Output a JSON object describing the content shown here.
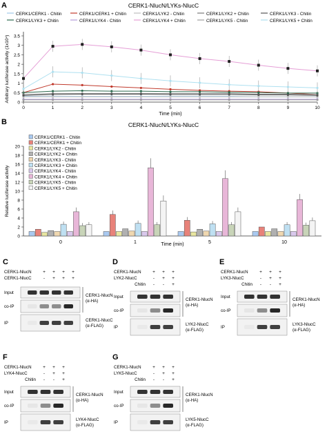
{
  "figure": {
    "panels": [
      "A",
      "B",
      "C",
      "D",
      "E",
      "F",
      "G"
    ]
  },
  "chart_data": [
    {
      "panel": "A",
      "type": "line",
      "title": "CERK1-NlucN/LYKs-NlucC",
      "xlabel": "Time (min)",
      "ylabel": "Arbitrary luciferase activity (1x10⁴)",
      "x": [
        0,
        1,
        2,
        3,
        4,
        5,
        6,
        7,
        8,
        9,
        10
      ],
      "xlim": [
        0,
        10
      ],
      "ylim": [
        0,
        3.5
      ],
      "yticks": [
        0,
        0.5,
        1,
        1.5,
        2,
        2.5,
        3,
        3.5
      ],
      "series": [
        {
          "name": "CERK1/CERK1 - Chitin",
          "color": "#9ec9e8",
          "values": [
            0.3,
            0.3,
            0.3,
            0.3,
            0.3,
            0.3,
            0.3,
            0.3,
            0.28,
            0.28,
            0.28
          ]
        },
        {
          "name": "CERK1/CERK1 + Chitin",
          "color": "#c0392b",
          "values": [
            0.5,
            0.95,
            0.9,
            0.82,
            0.75,
            0.68,
            0.62,
            0.58,
            0.55,
            0.48,
            0.4
          ]
        },
        {
          "name": "CERK1/LYK2 - Chitin",
          "color": "#bdbdbd",
          "values": [
            0.28,
            0.28,
            0.28,
            0.28,
            0.28,
            0.28,
            0.28,
            0.28,
            0.28,
            0.28,
            0.28
          ]
        },
        {
          "name": "CERK1/LYK2 + Chitin",
          "color": "#7a7a7a",
          "values": [
            0.4,
            0.45,
            0.45,
            0.45,
            0.45,
            0.45,
            0.45,
            0.45,
            0.42,
            0.42,
            0.4
          ]
        },
        {
          "name": "CERK1/LYK3 - Chitin",
          "color": "#555555",
          "values": [
            0.35,
            0.4,
            0.42,
            0.42,
            0.42,
            0.4,
            0.4,
            0.4,
            0.38,
            0.38,
            0.35
          ]
        },
        {
          "name": "CERK1/LYK3 + Chitin",
          "color": "#2d6a4f",
          "values": [
            0.5,
            0.58,
            0.6,
            0.58,
            0.58,
            0.55,
            0.55,
            0.52,
            0.5,
            0.48,
            0.48
          ]
        },
        {
          "name": "CERK1/LYK4 - Chitin",
          "color": "#b39ddb",
          "values": [
            0.15,
            0.15,
            0.15,
            0.15,
            0.15,
            0.15,
            0.15,
            0.15,
            0.15,
            0.15,
            0.15
          ]
        },
        {
          "name": "CERK1/LYK4 + Chitin",
          "color": "#e59ed6",
          "values": [
            1.25,
            2.95,
            3.05,
            2.92,
            2.75,
            2.5,
            2.3,
            2.15,
            1.95,
            1.78,
            1.65
          ]
        },
        {
          "name": "CERK1/LYK5 - Chitin",
          "color": "#9e9e9e",
          "values": [
            0.12,
            0.12,
            0.12,
            0.12,
            0.12,
            0.12,
            0.12,
            0.12,
            0.12,
            0.12,
            0.12
          ]
        },
        {
          "name": "CERK1/LYK5 + Chitin",
          "color": "#aee0f0",
          "values": [
            0.7,
            1.6,
            1.55,
            1.4,
            1.25,
            1.12,
            1.02,
            0.92,
            0.85,
            0.8,
            0.75
          ]
        }
      ],
      "legend_position": "top"
    },
    {
      "panel": "B",
      "type": "bar",
      "title": "CERK1-NlucN/LYKs-NlucC",
      "xlabel": "Time (min)",
      "ylabel": "Relative luciferase activity",
      "categories": [
        "0",
        "1",
        "5",
        "10"
      ],
      "ylim": [
        0,
        20
      ],
      "yticks": [
        0,
        2,
        4,
        6,
        8,
        10,
        12,
        14,
        16,
        18,
        20
      ],
      "series": [
        {
          "name": "CERK1/CERK1 - Chitin",
          "color": "#a9c9f0",
          "values": [
            1.0,
            1.0,
            1.0,
            1.0
          ]
        },
        {
          "name": "CERK1/CERK1 + Chitin",
          "color": "#e8827a",
          "values": [
            1.5,
            4.8,
            3.5,
            2.0
          ]
        },
        {
          "name": "CERK1/LYK2 - Chitin",
          "color": "#e8e6a0",
          "values": [
            0.8,
            1.0,
            0.9,
            1.0
          ]
        },
        {
          "name": "CERK1/LYK2 + Chitin",
          "color": "#b0b0b0",
          "values": [
            1.2,
            1.6,
            1.5,
            1.6
          ]
        },
        {
          "name": "CERK1/LYK3 - Chitin",
          "color": "#f0d8b0",
          "values": [
            1.0,
            1.1,
            1.1,
            1.0
          ]
        },
        {
          "name": "CERK1/LYK3 + Chitin",
          "color": "#bfe0f2",
          "values": [
            2.6,
            2.8,
            2.7,
            2.5
          ]
        },
        {
          "name": "CERK1/LYK4 - Chitin",
          "color": "#d9c8ec",
          "values": [
            1.0,
            1.0,
            1.0,
            1.0
          ]
        },
        {
          "name": "CERK1/LYK4 + Chitin",
          "color": "#e8b6d8",
          "values": [
            5.4,
            15.2,
            12.8,
            8.1
          ]
        },
        {
          "name": "CERK1/LYK5 - Chitin",
          "color": "#c8d4b8",
          "values": [
            2.3,
            2.5,
            2.5,
            2.4
          ]
        },
        {
          "name": "CERK1/LYK5 + Chitin",
          "color": "#f4f4f4",
          "values": [
            2.5,
            7.8,
            5.4,
            3.4
          ]
        }
      ],
      "legend_position": "top-left"
    }
  ],
  "blots": [
    {
      "panel": "C",
      "rows": [
        "CERK1-NlucN",
        "CERK1-NlucC"
      ],
      "signs": [
        [
          "+",
          "+",
          "+",
          "+"
        ],
        [
          "-",
          "+",
          "+",
          "+"
        ]
      ],
      "chitin_label": "",
      "chitin_signs": [],
      "lanes": [
        "Input",
        "co-IP",
        "IP"
      ],
      "right_labels": [
        "CERK1-NlucN",
        "(α-HA)",
        "CERK1-NlucC",
        "(α-FLAG)"
      ]
    },
    {
      "panel": "D",
      "rows": [
        "CERK1-NlucN",
        "LYK2-NlucC"
      ],
      "signs": [
        [
          "+",
          "+",
          "+"
        ],
        [
          "-",
          "+",
          "+"
        ]
      ],
      "chitin_label": "Chitin",
      "chitin_signs": [
        "-",
        "-",
        "+"
      ],
      "lanes": [
        "Input",
        "co-IP",
        "IP"
      ],
      "right_labels": [
        "CERK1-NlucN",
        "(α-HA)",
        "LYK2-NlucC",
        "(α-FLAG)"
      ]
    },
    {
      "panel": "E",
      "rows": [
        "CERK1-NlucN",
        "LYK3-NlucC"
      ],
      "signs": [
        [
          "+",
          "+",
          "+"
        ],
        [
          "-",
          "+",
          "+"
        ]
      ],
      "chitin_label": "Chitin",
      "chitin_signs": [
        "-",
        "-",
        "+"
      ],
      "lanes": [
        "Input",
        "co-IP",
        "IP"
      ],
      "right_labels": [
        "CERK1-NlucN",
        "(α-HA)",
        "LYK3-NlucC",
        "(α-FLAG)"
      ]
    },
    {
      "panel": "F",
      "rows": [
        "CERK1-NlucN",
        "LYK4-NlucC"
      ],
      "signs": [
        [
          "+",
          "+",
          "+"
        ],
        [
          "-",
          "+",
          "+"
        ]
      ],
      "chitin_label": "Chitin",
      "chitin_signs": [
        "-",
        "-",
        "+"
      ],
      "lanes": [
        "Input",
        "co-IP",
        "IP"
      ],
      "right_labels": [
        "CERK1-NlucN",
        "(α-HA)",
        "LYK4-NlucC",
        "(α-FLAG)"
      ]
    },
    {
      "panel": "G",
      "rows": [
        "CERK1-NlucN",
        "LYK5-NlucC"
      ],
      "signs": [
        [
          "+",
          "+",
          "+"
        ],
        [
          "-",
          "+",
          "+"
        ]
      ],
      "chitin_label": "Chitin",
      "chitin_signs": [
        "-",
        "-",
        "+"
      ],
      "lanes": [
        "Input",
        "co-IP",
        "IP"
      ],
      "right_labels": [
        "CERK1-NlucN",
        "(α-HA)",
        "LYK5-NlucC",
        "(α-FLAG)"
      ]
    }
  ]
}
